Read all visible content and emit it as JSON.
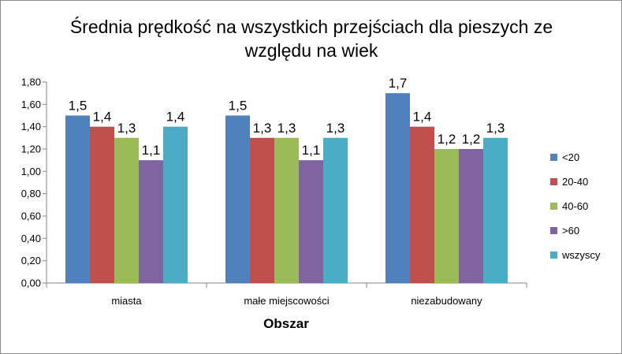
{
  "chart_data": {
    "type": "bar",
    "title": "Średnia prędkość na wszystkich przejściach dla pieszych ze względu na wiek",
    "title_lines": [
      "Średnia prędkość na wszystkich przejściach dla pieszych ze",
      "względu na wiek"
    ],
    "xlabel": "Obszar",
    "ylabel": "",
    "ylim": [
      0,
      1.8
    ],
    "yticks": [
      "0,00",
      "0,20",
      "0,40",
      "0,60",
      "0,80",
      "1,00",
      "1,20",
      "1,40",
      "1,60",
      "1,80"
    ],
    "grid": false,
    "legend_position": "right",
    "categories": [
      "miasta",
      "małe miejscowości",
      "niezabudowany"
    ],
    "series": [
      {
        "name": "<20",
        "color": "#4F81BD",
        "values": [
          1.5,
          1.5,
          1.7
        ],
        "labels": [
          "1,5",
          "1,5",
          "1,7"
        ]
      },
      {
        "name": "20-40",
        "color": "#C0504D",
        "values": [
          1.4,
          1.3,
          1.4
        ],
        "labels": [
          "1,4",
          "1,3",
          "1,4"
        ]
      },
      {
        "name": "40-60",
        "color": "#9BBB59",
        "values": [
          1.3,
          1.3,
          1.2
        ],
        "labels": [
          "1,3",
          "1,3",
          "1,2"
        ]
      },
      {
        "name": ">60",
        "color": "#8064A2",
        "values": [
          1.1,
          1.1,
          1.2
        ],
        "labels": [
          "1,1",
          "1,1",
          "1,2"
        ]
      },
      {
        "name": "wszyscy",
        "color": "#4BACC6",
        "values": [
          1.4,
          1.3,
          1.3
        ],
        "labels": [
          "1,4",
          "1,3",
          "1,3"
        ]
      }
    ]
  }
}
